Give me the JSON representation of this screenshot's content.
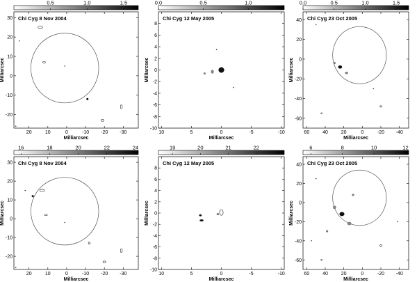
{
  "figure": {
    "panels": [
      {
        "title": "Chi Cyg 8 Nov 2004",
        "xlabel": "Milliarcsec",
        "ylabel": "Milliarcsec",
        "xlim": [
          28,
          -38
        ],
        "ylim": [
          -27,
          33
        ],
        "xticks": [
          20,
          10,
          0,
          -10,
          -20,
          -30
        ],
        "yticks": [
          30,
          20,
          10,
          0,
          -10,
          -20
        ],
        "colorbar": {
          "range": [
            0,
            1.7
          ],
          "ticks": [
            "0.5",
            "1.0",
            "1.5"
          ],
          "tick_values": [
            0.5,
            1.0,
            1.5
          ]
        },
        "circle": {
          "cx": 1,
          "cy": 4,
          "r": 18
        },
        "features": [
          {
            "x": 14,
            "y": 25,
            "w": 2.5,
            "h": 1.2,
            "ink": "contour"
          },
          {
            "x": 12,
            "y": 7,
            "w": 1.5,
            "h": 0.8,
            "ink": "contour"
          },
          {
            "x": -11,
            "y": -12,
            "w": 1,
            "h": 1,
            "ink": "dark"
          },
          {
            "x": -19,
            "y": -23,
            "w": 1.5,
            "h": 1,
            "ink": "contour"
          },
          {
            "x": -29,
            "y": -16,
            "w": 1,
            "h": 2,
            "ink": "contour"
          },
          {
            "x": 1,
            "y": 5,
            "w": 0.4,
            "h": 0.4,
            "ink": "dot"
          },
          {
            "x": 27,
            "y": -26,
            "w": 0.4,
            "h": 0.4,
            "ink": "dot"
          },
          {
            "x": 25,
            "y": 18,
            "w": 0.3,
            "h": 0.3,
            "ink": "dot"
          }
        ]
      },
      {
        "title": "Chi Cyg 12 May 2005",
        "xlabel": "Milliarcsec",
        "ylabel": "Milliarcsec",
        "xlim": [
          10.5,
          -10.5
        ],
        "ylim": [
          -10,
          10
        ],
        "xticks": [
          10,
          5,
          0,
          -5,
          -10
        ],
        "yticks": [
          8,
          6,
          4,
          2,
          0,
          -2,
          -4,
          -6,
          -8,
          -10
        ],
        "colorbar": {
          "range": [
            0,
            1.4
          ],
          "ticks": [
            "0.0",
            "0.5",
            "1.0"
          ],
          "tick_values": [
            0.0,
            0.5,
            1.0
          ]
        },
        "circle": null,
        "features": [
          {
            "x": 0,
            "y": 0,
            "w": 0.9,
            "h": 0.9,
            "ink": "dark"
          },
          {
            "x": 1.5,
            "y": -0.3,
            "w": 0.4,
            "h": 0.6,
            "ink": "grey"
          },
          {
            "x": 2.8,
            "y": -0.6,
            "w": 0.3,
            "h": 0.3,
            "ink": "grey"
          },
          {
            "x": 0.8,
            "y": 3.5,
            "w": 0.2,
            "h": 0.2,
            "ink": "dot"
          },
          {
            "x": -2,
            "y": -3,
            "w": 0.2,
            "h": 0.2,
            "ink": "dot"
          }
        ]
      },
      {
        "title": "Chi Cyg 23 Oct 2005",
        "xlabel": "Milliarcsec",
        "ylabel": "Milliarcsec",
        "xlim": [
          64,
          -50
        ],
        "ylim": [
          -70,
          48
        ],
        "xticks": [
          60,
          40,
          20,
          0,
          -20,
          -40
        ],
        "yticks": [
          40,
          20,
          0,
          -20,
          -40,
          -60
        ],
        "colorbar": {
          "range": [
            0,
            1.7
          ],
          "ticks": [
            "0.0",
            "0.5",
            "1.0",
            "1.5"
          ],
          "tick_values": [
            0.0,
            0.5,
            1.0,
            1.5
          ]
        },
        "circle": {
          "cx": 3,
          "cy": 4,
          "r": 29
        },
        "features": [
          {
            "x": 24,
            "y": -8,
            "w": 4,
            "h": 3,
            "ink": "dark"
          },
          {
            "x": 17,
            "y": -14,
            "w": 3,
            "h": 2,
            "ink": "grey"
          },
          {
            "x": 30,
            "y": -4,
            "w": 2,
            "h": 2,
            "ink": "grey"
          },
          {
            "x": 50,
            "y": 35,
            "w": 1,
            "h": 1,
            "ink": "dot"
          },
          {
            "x": -20,
            "y": -48,
            "w": 2,
            "h": 1.5,
            "ink": "contour"
          },
          {
            "x": 44,
            "y": -55,
            "w": 1.5,
            "h": 1,
            "ink": "contour"
          },
          {
            "x": -12,
            "y": -30,
            "w": 1,
            "h": 1,
            "ink": "dot"
          }
        ]
      },
      {
        "title": "Chi Cyg 8 Nov 2004",
        "xlabel": "Milliarcsec",
        "ylabel": "Milliarcsec",
        "xlim": [
          28,
          -38
        ],
        "ylim": [
          -27,
          33
        ],
        "xticks": [
          20,
          10,
          0,
          -10,
          -20,
          -30
        ],
        "yticks": [
          30,
          20,
          10,
          0,
          -10,
          -20
        ],
        "colorbar": {
          "range": [
            15.5,
            24.2
          ],
          "ticks": [
            "16",
            "18",
            "20",
            "22",
            "24"
          ],
          "tick_values": [
            16,
            18,
            20,
            22,
            24
          ]
        },
        "circle": {
          "cx": 1,
          "cy": 4,
          "r": 18
        },
        "features": [
          {
            "x": 13,
            "y": 15,
            "w": 2.5,
            "h": 1.2,
            "ink": "contour"
          },
          {
            "x": 11,
            "y": 2,
            "w": 1.5,
            "h": 0.8,
            "ink": "contour"
          },
          {
            "x": 18,
            "y": 12,
            "w": 1,
            "h": 1,
            "ink": "dark"
          },
          {
            "x": 22,
            "y": 15,
            "w": 0.5,
            "h": 0.5,
            "ink": "dot"
          },
          {
            "x": -12,
            "y": -13,
            "w": 1,
            "h": 1,
            "ink": "contour"
          },
          {
            "x": -20,
            "y": -23,
            "w": 1.5,
            "h": 1,
            "ink": "contour"
          },
          {
            "x": -29,
            "y": -17,
            "w": 1,
            "h": 2,
            "ink": "contour"
          },
          {
            "x": 1,
            "y": -2,
            "w": 0.4,
            "h": 0.4,
            "ink": "dot"
          },
          {
            "x": 27,
            "y": -26,
            "w": 0.4,
            "h": 0.4,
            "ink": "dot"
          }
        ]
      },
      {
        "title": "Chi Cyg 12 May 2005",
        "xlabel": "Milliarcsec",
        "ylabel": "Milliarcsec",
        "xlim": [
          10.5,
          -10.5
        ],
        "ylim": [
          -10,
          10
        ],
        "xticks": [
          10,
          5,
          0,
          -5,
          -10
        ],
        "yticks": [
          8,
          6,
          4,
          2,
          0,
          -2,
          -4,
          -6,
          -8,
          -10
        ],
        "colorbar": {
          "range": [
            18.5,
            23
          ],
          "ticks": [
            "19",
            "20",
            "21",
            "22"
          ],
          "tick_values": [
            19,
            20,
            21,
            22
          ]
        },
        "circle": null,
        "features": [
          {
            "x": 3.5,
            "y": -0.4,
            "w": 0.4,
            "h": 0.3,
            "ink": "dark"
          },
          {
            "x": 3.3,
            "y": -1.3,
            "w": 0.6,
            "h": 0.3,
            "ink": "dark"
          },
          {
            "x": 0,
            "y": 0.1,
            "w": 0.6,
            "h": 1,
            "ink": "contour"
          },
          {
            "x": 0.6,
            "y": -0.2,
            "w": 0.3,
            "h": 0.3,
            "ink": "contour"
          }
        ]
      },
      {
        "title": "Chi Cyg 23 Oct 2005",
        "xlabel": "Milliarcsec",
        "ylabel": "Milliarcsec",
        "xlim": [
          64,
          -50
        ],
        "ylim": [
          -70,
          48
        ],
        "xticks": [
          60,
          40,
          20,
          0,
          -20,
          -40
        ],
        "yticks": [
          40,
          20,
          0,
          -20,
          -40,
          -60
        ],
        "colorbar": {
          "range": [
            5.5,
            12.2
          ],
          "ticks": [
            "6",
            "8",
            "10",
            "12"
          ],
          "tick_values": [
            6,
            8,
            10,
            12
          ]
        },
        "circle": {
          "cx": 3,
          "cy": 5,
          "r": 29
        },
        "features": [
          {
            "x": 22,
            "y": -12,
            "w": 5,
            "h": 4,
            "ink": "dark"
          },
          {
            "x": 14,
            "y": -22,
            "w": 4,
            "h": 3,
            "ink": "grey"
          },
          {
            "x": 30,
            "y": -5,
            "w": 3,
            "h": 3,
            "ink": "grey"
          },
          {
            "x": 38,
            "y": -30,
            "w": 2,
            "h": 2,
            "ink": "grey"
          },
          {
            "x": 10,
            "y": 8,
            "w": 2,
            "h": 2,
            "ink": "grey"
          },
          {
            "x": -20,
            "y": -45,
            "w": 2,
            "h": 2,
            "ink": "contour"
          },
          {
            "x": 50,
            "y": 25,
            "w": 1,
            "h": 1,
            "ink": "dot"
          },
          {
            "x": 44,
            "y": -60,
            "w": 1.5,
            "h": 1,
            "ink": "contour"
          },
          {
            "x": -38,
            "y": -20,
            "w": 1,
            "h": 1,
            "ink": "dot"
          },
          {
            "x": 55,
            "y": -40,
            "w": 1,
            "h": 1,
            "ink": "dot"
          }
        ]
      }
    ]
  }
}
